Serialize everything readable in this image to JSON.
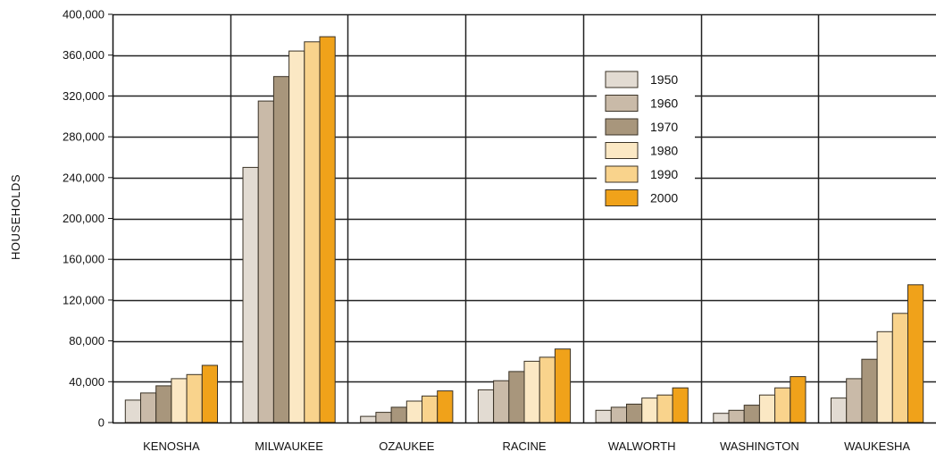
{
  "chart_data": {
    "type": "bar",
    "xlabel": "",
    "ylabel": "HOUSEHOLDS",
    "ylim": [
      0,
      400000
    ],
    "yticks": [
      0,
      40000,
      80000,
      120000,
      160000,
      200000,
      240000,
      280000,
      320000,
      360000,
      400000
    ],
    "ytick_labels": [
      "0",
      "40,000",
      "80,000",
      "120,000",
      "160,000",
      "200,000",
      "240,000",
      "280,000",
      "320,000",
      "360,000",
      "400,000"
    ],
    "categories": [
      "KENOSHA",
      "MILWAUKEE",
      "OZAUKEE",
      "RACINE",
      "WALWORTH",
      "WASHINGTON",
      "WAUKESHA"
    ],
    "series": [
      {
        "name": "1950",
        "color": "#e2dbd2",
        "values": [
          22000,
          250000,
          6000,
          32000,
          12000,
          9000,
          24000
        ]
      },
      {
        "name": "1960",
        "color": "#c9baa8",
        "values": [
          29000,
          315000,
          10000,
          41000,
          15000,
          12000,
          43000
        ]
      },
      {
        "name": "1970",
        "color": "#a8967c",
        "values": [
          36000,
          339000,
          15000,
          50000,
          18000,
          17000,
          62000
        ]
      },
      {
        "name": "1980",
        "color": "#fbe8c4",
        "values": [
          43000,
          364000,
          21000,
          60000,
          24000,
          27000,
          89000
        ]
      },
      {
        "name": "1990",
        "color": "#f9d38c",
        "values": [
          47000,
          373000,
          26000,
          64000,
          27000,
          34000,
          107000
        ]
      },
      {
        "name": "2000",
        "color": "#f0a21a",
        "values": [
          56000,
          378000,
          31000,
          72000,
          34000,
          45000,
          135000
        ]
      }
    ],
    "legend_position": "upper-right"
  }
}
